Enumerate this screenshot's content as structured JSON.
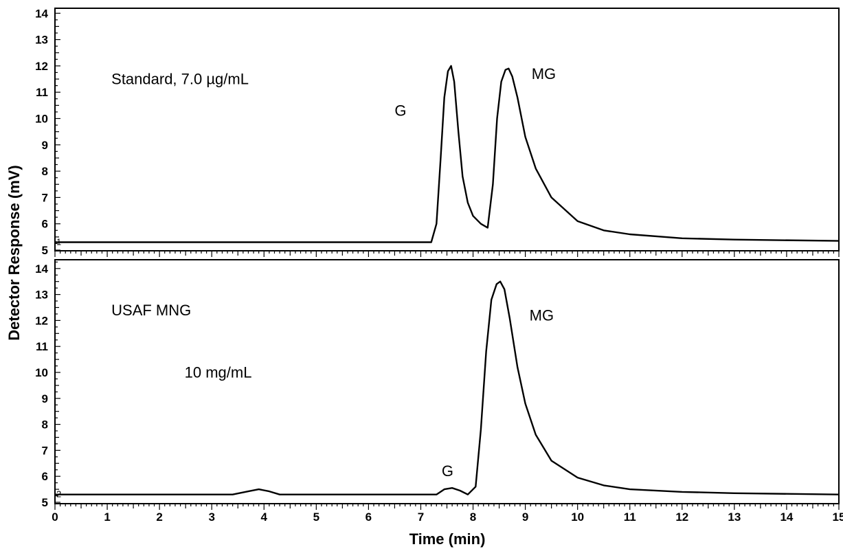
{
  "chart_data": {
    "type": "line",
    "title": "",
    "xlabel": "Time (min)",
    "ylabel": "Detector Response (mV)",
    "xlim": [
      0,
      15
    ],
    "x_ticks": [
      "0",
      "1",
      "2",
      "3",
      "4",
      "5",
      "6",
      "7",
      "8",
      "9",
      "10",
      "11",
      "12",
      "13",
      "14",
      "15"
    ],
    "panels": [
      {
        "ylim": [
          5,
          14.8
        ],
        "y_ticks": [
          "5",
          "6",
          "7",
          "8",
          "9",
          "10",
          "11",
          "12",
          "13",
          "14"
        ],
        "trace_label": "1",
        "annotations": [
          {
            "text": "Standard,  7.0 µg/mL",
            "x": 1.08,
            "y": 11.3
          },
          {
            "text": "G",
            "x": 6.5,
            "y": 10.1
          },
          {
            "text": "MG",
            "x": 9.12,
            "y": 11.5
          }
        ],
        "series": [
          {
            "x": [
              0,
              2,
              3.9,
              5,
              7.2,
              7.3,
              7.38,
              7.45,
              7.52,
              7.58,
              7.64,
              7.72,
              7.8,
              7.9,
              8.0,
              8.15,
              8.28,
              8.38,
              8.46,
              8.54,
              8.62,
              8.68,
              8.75,
              8.85,
              9.0,
              9.2,
              9.5,
              10.0,
              10.5,
              11.0,
              12.0,
              13.0,
              15.0
            ],
            "y": [
              5.3,
              5.3,
              5.3,
              5.3,
              5.3,
              6.0,
              8.5,
              10.8,
              11.8,
              12.0,
              11.4,
              9.5,
              7.8,
              6.8,
              6.3,
              6.0,
              5.85,
              7.5,
              10.0,
              11.4,
              11.85,
              11.9,
              11.6,
              10.8,
              9.3,
              8.1,
              7.0,
              6.1,
              5.75,
              5.6,
              5.45,
              5.4,
              5.35
            ]
          }
        ]
      },
      {
        "ylim": [
          5,
          14.8
        ],
        "y_ticks": [
          "5",
          "6",
          "7",
          "8",
          "9",
          "10",
          "11",
          "12",
          "13",
          "14"
        ],
        "trace_label": "2",
        "annotations": [
          {
            "text": "USAF MNG",
            "x": 1.08,
            "y": 12.2
          },
          {
            "text": "10 mg/mL",
            "x": 2.48,
            "y": 9.8
          },
          {
            "text": "G",
            "x": 7.4,
            "y": 6.0
          },
          {
            "text": "MG",
            "x": 9.08,
            "y": 12.0
          }
        ],
        "series": [
          {
            "x": [
              0,
              3.4,
              3.7,
              3.9,
              4.1,
              4.3,
              7.3,
              7.45,
              7.6,
              7.75,
              7.9,
              8.05,
              8.15,
              8.25,
              8.35,
              8.45,
              8.52,
              8.6,
              8.7,
              8.85,
              9.0,
              9.2,
              9.5,
              10.0,
              10.5,
              11.0,
              12.0,
              13.0,
              15.0
            ],
            "y": [
              5.3,
              5.3,
              5.42,
              5.5,
              5.42,
              5.3,
              5.3,
              5.5,
              5.55,
              5.45,
              5.3,
              5.6,
              7.8,
              10.8,
              12.8,
              13.4,
              13.5,
              13.2,
              12.1,
              10.2,
              8.8,
              7.6,
              6.6,
              5.95,
              5.65,
              5.5,
              5.4,
              5.35,
              5.3
            ]
          }
        ]
      }
    ]
  }
}
